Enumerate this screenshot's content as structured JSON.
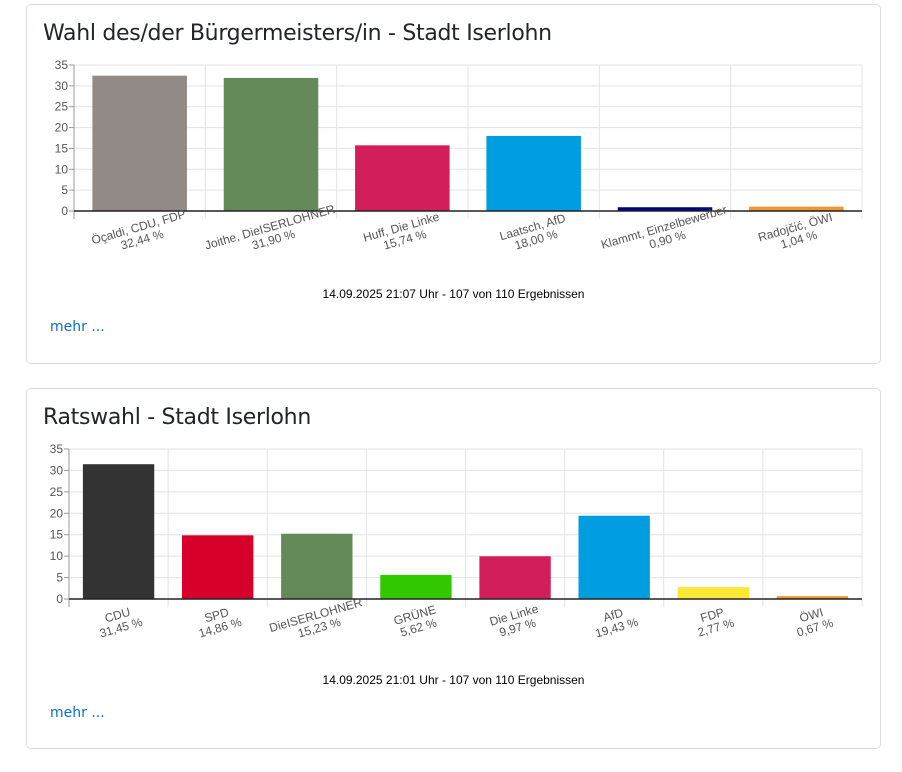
{
  "cards": [
    {
      "title": "Wahl des/der Bürgermeisters/in - Stadt Iserlohn",
      "footer": "14.09.2025 21:07 Uhr - 107 von 110 Ergebnissen",
      "more_label": "mehr ..."
    },
    {
      "title": "Ratswahl - Stadt Iserlohn",
      "footer": "14.09.2025 21:01 Uhr - 107 von 110 Ergebnissen",
      "more_label": "mehr ..."
    }
  ],
  "chart_data": [
    {
      "type": "bar",
      "title": "Wahl des/der Bürgermeisters/in - Stadt Iserlohn",
      "xlabel": "",
      "ylabel": "",
      "ylim": [
        0,
        35
      ],
      "yticks": [
        0,
        5,
        10,
        15,
        20,
        25,
        30,
        35
      ],
      "grid": true,
      "legend": "none",
      "categories": [
        "Öçaldi, CDU, FDP",
        "Joithe, DieISERLOHNER",
        "Huff, Die Linke",
        "Laatsch, AfD",
        "Klammt, Einzelbewerber",
        "Radojčić, ÖWI"
      ],
      "value_labels": [
        "32,44 %",
        "31,90 %",
        "15,74 %",
        "18,00 %",
        "0,90 %",
        "1,04 %"
      ],
      "values": [
        32.44,
        31.9,
        15.74,
        18.0,
        0.9,
        1.04
      ],
      "colors": [
        "#928a86",
        "#648a5a",
        "#d21e5a",
        "#009ee0",
        "#00007f",
        "#f39631"
      ]
    },
    {
      "type": "bar",
      "title": "Ratswahl - Stadt Iserlohn",
      "xlabel": "",
      "ylabel": "",
      "ylim": [
        0,
        35
      ],
      "yticks": [
        0,
        5,
        10,
        15,
        20,
        25,
        30,
        35
      ],
      "grid": true,
      "legend": "none",
      "categories": [
        "CDU",
        "SPD",
        "DieISERLOHNER",
        "GRÜNE",
        "Die Linke",
        "AfD",
        "FDP",
        "ÖWI"
      ],
      "value_labels": [
        "31,45 %",
        "14,86 %",
        "15,23 %",
        "5,62 %",
        "9,97 %",
        "19,43 %",
        "2,77 %",
        "0,67 %"
      ],
      "values": [
        31.45,
        14.86,
        15.23,
        5.62,
        9.97,
        19.43,
        2.77,
        0.67
      ],
      "colors": [
        "#333333",
        "#d7002a",
        "#648a5a",
        "#32c800",
        "#d21e5a",
        "#009ee0",
        "#fbe834",
        "#f39631"
      ]
    }
  ]
}
